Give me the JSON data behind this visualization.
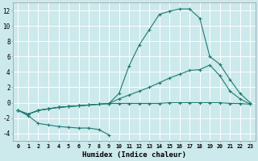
{
  "title": "",
  "xlabel": "Humidex (Indice chaleur)",
  "background_color": "#cce9ec",
  "grid_color": "#ffffff",
  "line_color": "#1e7a6e",
  "xlim": [
    -0.5,
    23.5
  ],
  "ylim": [
    -5,
    13
  ],
  "x_ticks": [
    0,
    1,
    2,
    3,
    4,
    5,
    6,
    7,
    8,
    9,
    10,
    11,
    12,
    13,
    14,
    15,
    16,
    17,
    18,
    19,
    20,
    21,
    22,
    23
  ],
  "yticks": [
    -4,
    -2,
    0,
    2,
    4,
    6,
    8,
    10,
    12
  ],
  "curve_peak_x": [
    0,
    1,
    2,
    3,
    4,
    5,
    6,
    7,
    8,
    9,
    10,
    11,
    12,
    13,
    14,
    15,
    16,
    17,
    18,
    19,
    20,
    21,
    22,
    23
  ],
  "curve_peak_y": [
    -1.0,
    -1.5,
    -1.0,
    -0.8,
    -0.6,
    -0.5,
    -0.4,
    -0.3,
    -0.2,
    -0.1,
    1.2,
    4.8,
    7.5,
    9.5,
    11.5,
    11.9,
    12.2,
    12.2,
    11.0,
    6.0,
    5.0,
    3.0,
    1.2,
    0.0
  ],
  "curve_mid_x": [
    0,
    1,
    2,
    3,
    4,
    5,
    6,
    7,
    8,
    9,
    10,
    11,
    12,
    13,
    14,
    15,
    16,
    17,
    18,
    19,
    20,
    21,
    22,
    23
  ],
  "curve_mid_y": [
    -1.0,
    -1.5,
    -1.0,
    -0.8,
    -0.6,
    -0.5,
    -0.4,
    -0.3,
    -0.2,
    -0.1,
    0.5,
    1.0,
    1.5,
    2.0,
    2.6,
    3.2,
    3.7,
    4.2,
    4.3,
    4.9,
    3.5,
    1.5,
    0.5,
    -0.2
  ],
  "curve_low_x": [
    0,
    1,
    2,
    3,
    4,
    5,
    6,
    7,
    8,
    9,
    10,
    11,
    12,
    13,
    14,
    15,
    16,
    17,
    18,
    19,
    20,
    21,
    22,
    23
  ],
  "curve_low_y": [
    -1.0,
    -1.5,
    -1.0,
    -0.8,
    -0.6,
    -0.5,
    -0.4,
    -0.3,
    -0.2,
    -0.1,
    -0.1,
    -0.1,
    -0.1,
    -0.1,
    -0.1,
    -0.0,
    -0.0,
    -0.0,
    0.0,
    0.0,
    0.0,
    -0.1,
    -0.1,
    -0.2
  ],
  "curve_dip_x": [
    0,
    1,
    2,
    3,
    4,
    5,
    6,
    7,
    8,
    9
  ],
  "curve_dip_y": [
    -1.0,
    -1.7,
    -2.7,
    -2.9,
    -3.1,
    -3.2,
    -3.3,
    -3.3,
    -3.5,
    -4.2
  ]
}
